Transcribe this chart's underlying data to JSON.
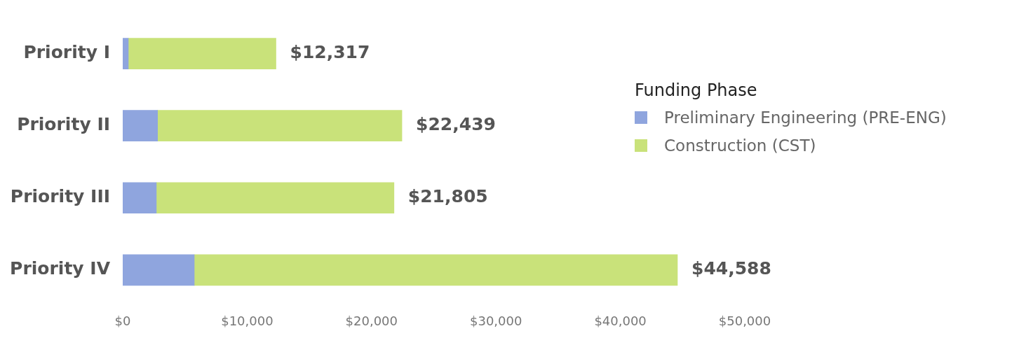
{
  "chart_data": {
    "type": "bar",
    "orientation": "horizontal",
    "stacked": true,
    "legend": "right",
    "legend_title": "Funding Phase",
    "grid": false,
    "categories": [
      "Priority I",
      "Priority II",
      "Priority III",
      "Priority IV"
    ],
    "series": [
      {
        "name": "Preliminary Engineering (PRE-ENG)",
        "color": "#8fa5de",
        "values": [
          450,
          2800,
          2700,
          5750
        ]
      },
      {
        "name": "Construction (CST)",
        "color": "#c9e27a",
        "values": [
          11867,
          19639,
          19105,
          38838
        ]
      }
    ],
    "totals": [
      "$12,317",
      "$22,439",
      "$21,805",
      "$44,588"
    ],
    "xlim": [
      0,
      50000
    ],
    "xticks": [
      {
        "value": 0,
        "label": "$0"
      },
      {
        "value": 10000,
        "label": "$10,000"
      },
      {
        "value": 20000,
        "label": "$20,000"
      },
      {
        "value": 30000,
        "label": "$30,000"
      },
      {
        "value": 40000,
        "label": "$40,000"
      },
      {
        "value": 50000,
        "label": "$50,000"
      }
    ]
  }
}
